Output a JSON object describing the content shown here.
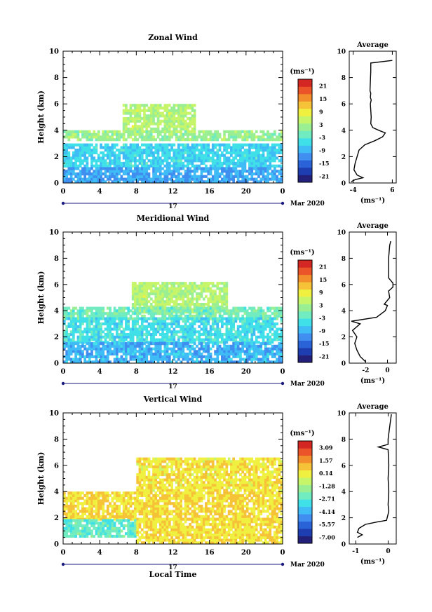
{
  "chart_data": [
    {
      "type": "heatmap",
      "title": "Zonal Wind",
      "ylabel": "Height (km)",
      "xticks": [
        "0",
        "4",
        "8",
        "12",
        "16",
        "20",
        "0"
      ],
      "yticks": [
        "0",
        "2",
        "4",
        "6",
        "8",
        "10"
      ],
      "xlim": [
        0,
        24
      ],
      "ylim": [
        0,
        10
      ],
      "date_label": "17",
      "month_label": "Mar 2020",
      "colorbar": {
        "unit": "(ms⁻¹)",
        "ticks": [
          "21",
          "15",
          "9",
          "3",
          "-3",
          "-9",
          "-15",
          "-21"
        ],
        "range": [
          -24,
          24
        ]
      },
      "regions": [
        {
          "label": "upper patch",
          "x": [
            6.5,
            14.5
          ],
          "y": [
            3.8,
            6.0
          ],
          "value": 4
        },
        {
          "label": "middle band",
          "x": [
            0,
            24
          ],
          "y": [
            3.2,
            4.0
          ],
          "value": 2
        },
        {
          "label": "lower layer",
          "x": [
            0,
            24
          ],
          "y": [
            1.2,
            2.9
          ],
          "value": -6
        },
        {
          "label": "near surface",
          "x": [
            0,
            24
          ],
          "y": [
            0,
            1.2
          ],
          "value": -10
        }
      ],
      "profile": {
        "title": "Average",
        "xlabel": "(ms⁻¹)",
        "xticks": [
          "-4",
          "6"
        ],
        "xlim": [
          -5,
          7
        ],
        "yticks": [
          "0",
          "2",
          "4",
          "6",
          "8",
          "10"
        ],
        "ylim": [
          0,
          10
        ],
        "points": [
          [
            -4.5,
            0.1
          ],
          [
            -3.5,
            0.25
          ],
          [
            -1.5,
            0.4
          ],
          [
            -3.0,
            0.6
          ],
          [
            -3.8,
            1.0
          ],
          [
            -3.5,
            1.5
          ],
          [
            -3.0,
            2.0
          ],
          [
            -2.5,
            2.5
          ],
          [
            -1.0,
            2.9
          ],
          [
            1.5,
            3.2
          ],
          [
            3.5,
            3.5
          ],
          [
            4.2,
            3.8
          ],
          [
            2.5,
            4.0
          ],
          [
            1.0,
            4.2
          ],
          [
            0.5,
            4.5
          ],
          [
            0.6,
            5.0
          ],
          [
            0.5,
            5.5
          ],
          [
            0.4,
            6.0
          ],
          [
            0.6,
            6.3
          ],
          [
            0.4,
            6.5
          ],
          [
            0.5,
            6.8
          ],
          [
            0.3,
            7.0
          ],
          [
            0.5,
            8.5
          ],
          [
            0.5,
            9.1
          ],
          [
            6.0,
            9.3
          ]
        ]
      }
    },
    {
      "type": "heatmap",
      "title": "Meridional Wind",
      "ylabel": "Height (km)",
      "xticks": [
        "0",
        "4",
        "8",
        "12",
        "16",
        "20",
        "0"
      ],
      "yticks": [
        "0",
        "2",
        "4",
        "6",
        "8",
        "10"
      ],
      "xlim": [
        0,
        24
      ],
      "ylim": [
        0,
        10
      ],
      "date_label": "17",
      "month_label": "Mar 2020",
      "colorbar": {
        "unit": "(ms⁻¹)",
        "ticks": [
          "21",
          "15",
          "9",
          "3",
          "-3",
          "-9",
          "-15",
          "-21"
        ],
        "range": [
          -24,
          24
        ]
      },
      "regions": [
        {
          "label": "upper patch",
          "x": [
            7.5,
            18
          ],
          "y": [
            3.8,
            6.2
          ],
          "value": 4
        },
        {
          "label": "middle band",
          "x": [
            0,
            24
          ],
          "y": [
            3.3,
            4.2
          ],
          "value": -1
        },
        {
          "label": "lower layer",
          "x": [
            0,
            24
          ],
          "y": [
            1.5,
            3.4
          ],
          "value": -5
        },
        {
          "label": "near surface",
          "x": [
            0,
            24
          ],
          "y": [
            0,
            1.5
          ],
          "value": -9
        }
      ],
      "profile": {
        "title": "Average",
        "xlabel": "(ms⁻¹)",
        "xticks": [
          "-2",
          "0"
        ],
        "xlim": [
          -3.5,
          0.8
        ],
        "yticks": [
          "0",
          "2",
          "4",
          "6",
          "8",
          "10"
        ],
        "ylim": [
          0,
          10
        ],
        "points": [
          [
            -2.0,
            0.1
          ],
          [
            -2.5,
            0.5
          ],
          [
            -2.8,
            1.0
          ],
          [
            -3.0,
            1.5
          ],
          [
            -2.8,
            2.0
          ],
          [
            -3.2,
            2.5
          ],
          [
            -2.5,
            3.0
          ],
          [
            -3.3,
            3.2
          ],
          [
            -1.0,
            3.5
          ],
          [
            -0.2,
            4.0
          ],
          [
            0.0,
            4.4
          ],
          [
            -0.3,
            4.5
          ],
          [
            0.2,
            5.0
          ],
          [
            0.1,
            5.5
          ],
          [
            0.5,
            5.8
          ],
          [
            0.5,
            6.1
          ],
          [
            0.1,
            6.5
          ],
          [
            0.1,
            8.0
          ],
          [
            0.2,
            9.0
          ],
          [
            0.3,
            9.3
          ]
        ]
      }
    },
    {
      "type": "heatmap",
      "title": "Vertical Wind",
      "ylabel": "Height (km)",
      "xlabel": "Local Time",
      "xticks": [
        "0",
        "4",
        "8",
        "12",
        "16",
        "20",
        "0"
      ],
      "yticks": [
        "0",
        "2",
        "4",
        "6",
        "8",
        "10"
      ],
      "xlim": [
        0,
        24
      ],
      "ylim": [
        0,
        10
      ],
      "date_label": "17",
      "month_label": "Mar 2020",
      "colorbar": {
        "unit": "(ms⁻¹)",
        "ticks": [
          "3.09",
          "1.57",
          "0.14",
          "-1.28",
          "-2.71",
          "-4.14",
          "-5.57",
          "-7.00"
        ],
        "range": [
          -7.7,
          3.8
        ]
      },
      "regions": [
        {
          "label": "upper patch",
          "x": [
            8,
            24
          ],
          "y": [
            4.0,
            6.5
          ],
          "value": 0.3
        },
        {
          "label": "middle band",
          "x": [
            0,
            24
          ],
          "y": [
            1.8,
            4.0
          ],
          "value": 0.5
        },
        {
          "label": "near surface",
          "x": [
            0,
            8
          ],
          "y": [
            0.5,
            1.8
          ],
          "value": -2.5
        },
        {
          "label": "near surface",
          "x": [
            8,
            24
          ],
          "y": [
            0,
            1.8
          ],
          "value": 0.4
        }
      ],
      "profile": {
        "title": "Average",
        "xlabel": "(ms⁻¹)",
        "xticks": [
          "-1",
          "0"
        ],
        "xlim": [
          -1.2,
          0.25
        ],
        "yticks": [
          "0",
          "2",
          "4",
          "6",
          "8",
          "10"
        ],
        "ylim": [
          0,
          10
        ],
        "points": [
          [
            -0.95,
            0.5
          ],
          [
            -0.8,
            0.7
          ],
          [
            -0.95,
            0.9
          ],
          [
            -0.9,
            1.2
          ],
          [
            -0.7,
            1.5
          ],
          [
            -0.3,
            1.7
          ],
          [
            -0.05,
            1.8
          ],
          [
            -0.03,
            2.0
          ],
          [
            0.02,
            2.5
          ],
          [
            0.0,
            3.0
          ],
          [
            0.02,
            4.0
          ],
          [
            0.0,
            5.0
          ],
          [
            0.02,
            6.0
          ],
          [
            0.0,
            7.2
          ],
          [
            -0.3,
            7.4
          ],
          [
            0.0,
            7.6
          ],
          [
            0.0,
            8.0
          ],
          [
            0.05,
            9.0
          ],
          [
            0.1,
            9.9
          ]
        ]
      }
    }
  ]
}
